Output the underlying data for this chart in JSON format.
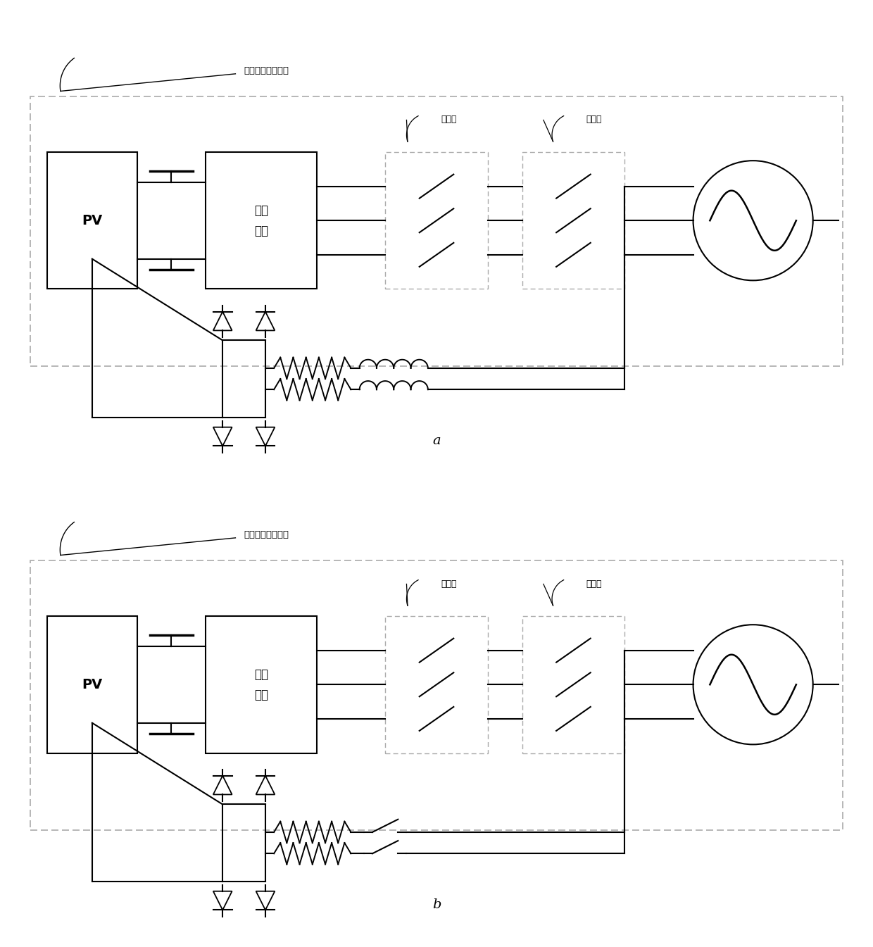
{
  "bg_color": "#ffffff",
  "line_color": "#000000",
  "dashed_color": "#aaaaaa",
  "title": "典型的逆变器系统",
  "label_a": "a",
  "label_b": "b",
  "group1_label": "第一组",
  "group2_label": "第二组",
  "pv_label": "PV",
  "inv_label": "逆变\n单元",
  "figsize": [
    12.4,
    13.45
  ],
  "dpi": 100
}
